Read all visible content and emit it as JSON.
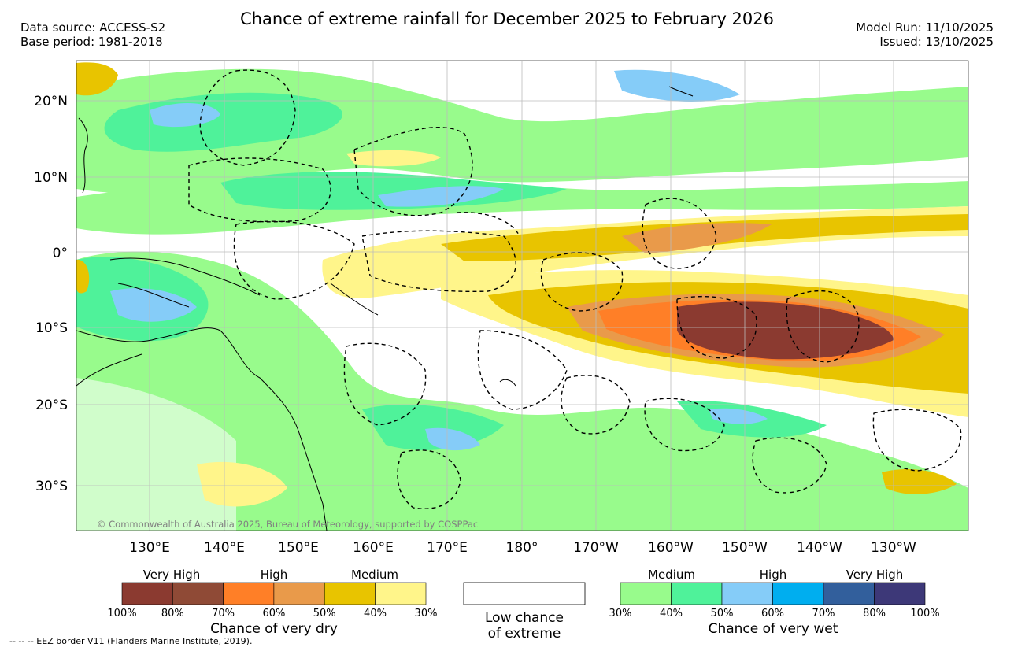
{
  "title": "Chance of extreme rainfall for December 2025 to February 2026",
  "header": {
    "data_source": "Data source: ACCESS-S2",
    "base_period": "Base period: 1981-2018",
    "model_run": "Model Run: 11/10/2025",
    "issued": "Issued: 13/10/2025"
  },
  "map": {
    "lat_labels": [
      "20°N",
      "10°N",
      "0°",
      "10°S",
      "20°S",
      "30°S"
    ],
    "lon_labels": [
      "130°E",
      "140°E",
      "150°E",
      "160°E",
      "170°E",
      "180°",
      "170°W",
      "160°W",
      "150°W",
      "140°W",
      "130°W"
    ],
    "copyright": "© Commonwealth of Australia 2025, Bureau of Meteorology, supported by COSPPac"
  },
  "legend": {
    "dry": {
      "category_labels": [
        "Very High",
        "High",
        "Medium"
      ],
      "tick_labels": [
        "100%",
        "80%",
        "70%",
        "60%",
        "50%",
        "40%",
        "30%"
      ],
      "caption": "Chance of very dry",
      "colors": [
        "#8b3a30",
        "#8f4a36",
        "#ff7f27",
        "#e99a4a",
        "#e8c400",
        "#fff58a"
      ]
    },
    "low": {
      "caption_line1": "Low chance",
      "caption_line2": "of extreme"
    },
    "wet": {
      "category_labels": [
        "Medium",
        "High",
        "Very High"
      ],
      "tick_labels": [
        "30%",
        "40%",
        "50%",
        "60%",
        "70%",
        "80%",
        "100%"
      ],
      "caption": "Chance of very wet",
      "colors": [
        "#98fb8c",
        "#4ff29a",
        "#85ccf8",
        "#00aeef",
        "#325f9c",
        "#3d3878"
      ]
    }
  },
  "footnote": "--  --  -- EEZ border V11 (Flanders Marine Institute, 2019)."
}
